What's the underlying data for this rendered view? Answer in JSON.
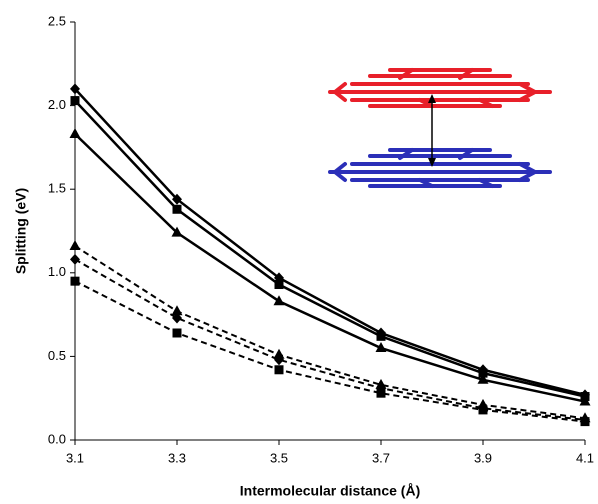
{
  "chart_data": {
    "type": "line",
    "x_label": "Intermolecular distance (Å)",
    "y_label": "Splitting (eV)",
    "x": [
      3.1,
      3.3,
      3.5,
      3.7,
      3.9,
      4.1
    ],
    "xlim": [
      3.1,
      4.1
    ],
    "xticks": [
      3.1,
      3.3,
      3.5,
      3.7,
      3.9,
      4.1
    ],
    "ylim": [
      0,
      2.5
    ],
    "yticks": [
      {
        "value": 0,
        "label": "0.0"
      },
      0.5,
      {
        "value": 1,
        "label": "1.0"
      },
      1.5,
      {
        "value": 2,
        "label": "2.0"
      },
      2.5
    ],
    "series": [
      {
        "color": "#000000",
        "marker": "diamond",
        "dash": false,
        "values": [
          2.1,
          1.44,
          0.97,
          0.64,
          0.42,
          0.27
        ]
      },
      {
        "color": "#000000",
        "marker": "square",
        "dash": false,
        "values": [
          2.03,
          1.38,
          0.93,
          0.62,
          0.4,
          0.26
        ]
      },
      {
        "color": "#000000",
        "marker": "triangle",
        "dash": false,
        "values": [
          1.83,
          1.24,
          0.83,
          0.55,
          0.36,
          0.23
        ]
      },
      {
        "color": "#000000",
        "marker": "triangle",
        "dash": true,
        "values": [
          1.16,
          0.77,
          0.51,
          0.33,
          0.21,
          0.13
        ]
      },
      {
        "color": "#000000",
        "marker": "diamond",
        "dash": true,
        "values": [
          1.08,
          0.73,
          0.48,
          0.31,
          0.19,
          0.12
        ]
      },
      {
        "color": "#000000",
        "marker": "square",
        "dash": true,
        "values": [
          0.95,
          0.64,
          0.42,
          0.28,
          0.18,
          0.11
        ]
      }
    ]
  }
}
